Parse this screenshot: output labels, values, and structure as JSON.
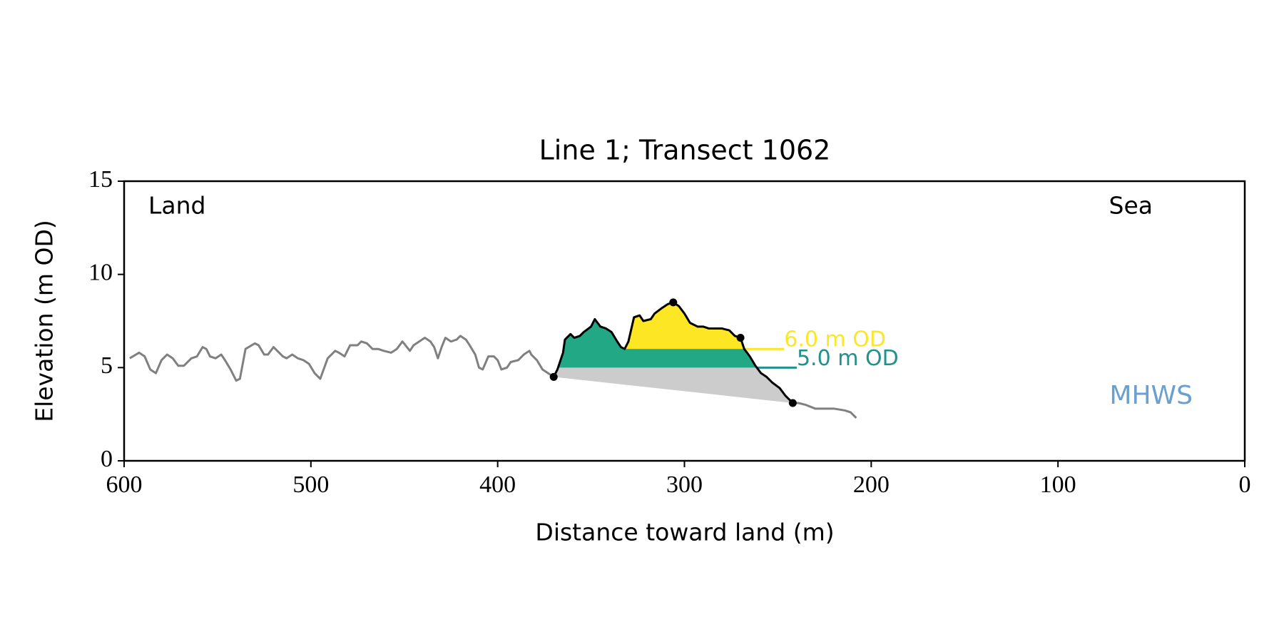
{
  "chart_data": {
    "type": "profile",
    "title": "Line 1; Transect 1062",
    "x_label": "Distance toward land (m)",
    "y_label": "Elevation (m OD)",
    "xlim": [
      600,
      0
    ],
    "ylim": [
      0,
      15
    ],
    "xticks": [
      600,
      500,
      400,
      300,
      200,
      100,
      0
    ],
    "yticks": [
      0,
      5,
      10,
      15
    ],
    "corner_labels": {
      "left": "Land",
      "right": "Sea"
    },
    "mhws": {
      "label": "MHWS",
      "color": "#6a9fcf"
    },
    "series": [
      {
        "role": "land",
        "color": "#808080",
        "x": [
          597,
          592,
          589,
          586,
          583,
          580,
          577,
          574,
          571,
          568,
          564,
          561,
          558,
          556,
          554,
          551,
          548,
          546,
          543,
          540,
          538,
          535,
          530,
          528,
          525,
          523,
          520,
          518,
          515,
          513,
          510,
          507,
          504,
          501,
          498,
          495,
          491,
          487,
          485,
          482,
          479,
          475,
          473,
          470,
          467,
          464,
          461,
          457,
          454,
          451,
          447,
          445,
          442,
          439,
          436,
          434,
          432,
          430,
          428,
          425,
          422,
          420,
          417,
          415,
          412,
          410,
          408,
          405,
          402,
          400,
          398,
          395,
          393,
          389,
          386,
          383,
          382,
          379,
          376,
          370
        ],
        "values": [
          5.5,
          5.8,
          5.6,
          4.9,
          4.7,
          5.4,
          5.7,
          5.5,
          5.1,
          5.1,
          5.5,
          5.6,
          6.1,
          6.0,
          5.6,
          5.5,
          5.7,
          5.4,
          4.9,
          4.3,
          4.4,
          6.0,
          6.3,
          6.2,
          5.7,
          5.7,
          6.1,
          5.9,
          5.6,
          5.5,
          5.7,
          5.5,
          5.4,
          5.2,
          4.7,
          4.4,
          5.5,
          5.9,
          5.8,
          5.6,
          6.2,
          6.2,
          6.4,
          6.3,
          6.0,
          6.0,
          5.9,
          5.8,
          6.0,
          6.4,
          5.9,
          6.2,
          6.4,
          6.6,
          6.4,
          6.1,
          5.5,
          6.1,
          6.6,
          6.4,
          6.5,
          6.7,
          6.5,
          6.2,
          5.7,
          5.0,
          4.9,
          5.6,
          5.6,
          5.4,
          4.9,
          5.0,
          5.3,
          5.4,
          5.7,
          5.9,
          5.7,
          5.4,
          4.9,
          4.5
        ]
      },
      {
        "role": "dune",
        "color": "#000000",
        "x": [
          370,
          368,
          365,
          364,
          361,
          359,
          356,
          354,
          350,
          348,
          345,
          342,
          339,
          336,
          334,
          332,
          330,
          327,
          324,
          322,
          318,
          316,
          312,
          309,
          306,
          303,
          300,
          297,
          293,
          290,
          287,
          284,
          280,
          276,
          273,
          270,
          268,
          265,
          262,
          259,
          256,
          253,
          249,
          246,
          242
        ],
        "values": [
          4.5,
          4.9,
          5.8,
          6.5,
          6.8,
          6.6,
          6.7,
          6.9,
          7.2,
          7.6,
          7.2,
          7.1,
          6.9,
          6.4,
          6.1,
          6.0,
          6.4,
          7.7,
          7.8,
          7.5,
          7.6,
          7.9,
          8.2,
          8.4,
          8.5,
          8.3,
          7.9,
          7.4,
          7.2,
          7.2,
          7.1,
          7.1,
          7.1,
          7.0,
          6.7,
          6.6,
          6.0,
          5.6,
          5.1,
          4.7,
          4.5,
          4.2,
          3.9,
          3.5,
          3.1
        ]
      },
      {
        "role": "sea",
        "color": "#808080",
        "x": [
          242,
          239,
          235,
          230,
          225,
          220,
          214,
          211,
          208
        ],
        "values": [
          3.1,
          3.1,
          3.0,
          2.8,
          2.8,
          2.8,
          2.7,
          2.6,
          2.3
        ]
      }
    ],
    "markers": {
      "color": "#000000",
      "x": [
        370,
        306,
        270,
        242
      ],
      "values": [
        4.5,
        8.5,
        6.6,
        3.1
      ]
    },
    "base_fill": "#cccccc",
    "levels": [
      {
        "value": 5.0,
        "label": "5.0 m OD",
        "color": "#21918c",
        "fill": "#22a884"
      },
      {
        "value": 6.0,
        "label": "6.0 m OD",
        "color": "#fde725",
        "fill": "#fde725"
      }
    ]
  }
}
